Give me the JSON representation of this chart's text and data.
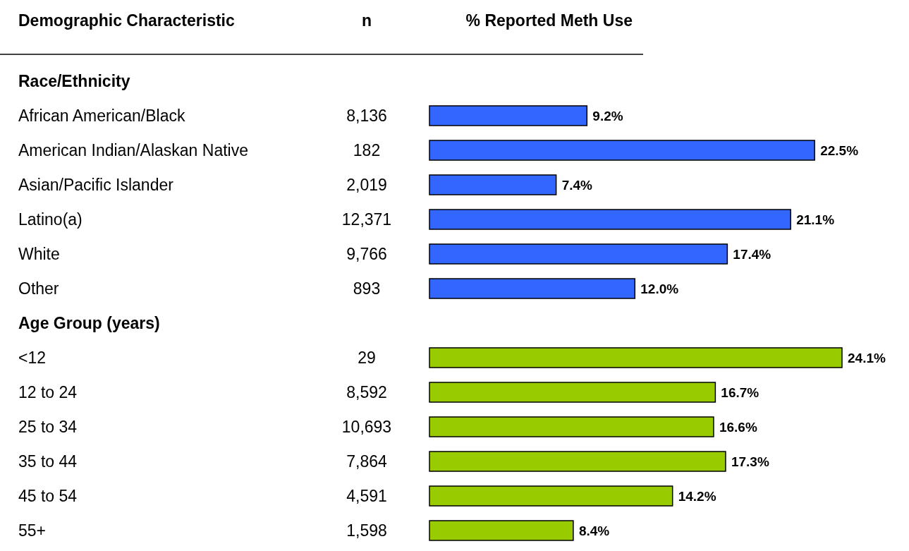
{
  "chart_data": {
    "type": "bar",
    "orientation": "horizontal",
    "ylabel": "Demographic Characteristic",
    "xlabel": "% Reported Meth Use",
    "categories": [
      "Race/Ethnicity",
      "African American/Black",
      "American Indian/Alaskan Native",
      "Asian/Pacific Islander",
      "Latino(a)",
      "White",
      "Other",
      "Age Group (years)",
      "<12",
      "12 to 24",
      "25 to 34",
      "35 to 44",
      "45 to 54",
      "55+"
    ],
    "values": [
      null,
      9.2,
      22.5,
      7.4,
      21.1,
      17.4,
      12.0,
      null,
      24.1,
      16.7,
      16.6,
      17.3,
      14.2,
      8.4
    ],
    "value_labels": [
      null,
      "9.2%",
      "22.5%",
      "7.4%",
      "21.1%",
      "17.4%",
      "12.0%",
      null,
      "24.1%",
      "16.7%",
      "16.6%",
      "17.3%",
      "14.2%",
      "8.4%"
    ],
    "colors": [
      null,
      "#3366ff",
      "#3366ff",
      "#3366ff",
      "#3366ff",
      "#3366ff",
      "#3366ff",
      null,
      "#99cc00",
      "#99cc00",
      "#99cc00",
      "#99cc00",
      "#99cc00",
      "#99cc00"
    ],
    "annotations": [
      "n",
      "8,136",
      "182",
      "2,019",
      "12,371",
      "9,766",
      "893",
      "29",
      "8,592",
      "10,693",
      "7,864",
      "4,591",
      "1,598"
    ]
  }
}
